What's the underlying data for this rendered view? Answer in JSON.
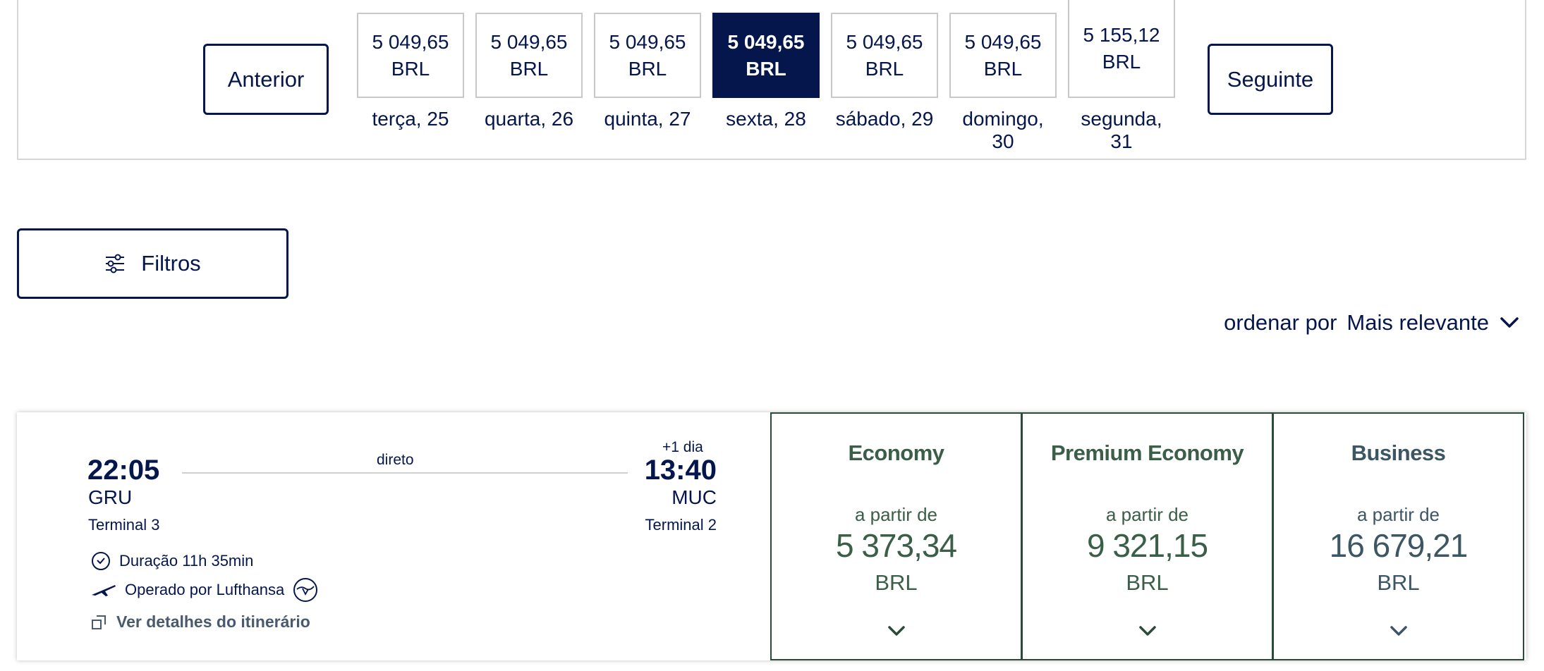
{
  "date_nav": {
    "prev_label": "Anterior",
    "next_label": "Seguinte",
    "dates": [
      {
        "price": "5 049,65",
        "currency": "BRL",
        "day": "terça, 25",
        "selected": false
      },
      {
        "price": "5 049,65",
        "currency": "BRL",
        "day": "quarta, 26",
        "selected": false
      },
      {
        "price": "5 049,65",
        "currency": "BRL",
        "day": "quinta, 27",
        "selected": false
      },
      {
        "price": "5 049,65",
        "currency": "BRL",
        "day": "sexta, 28",
        "selected": true
      },
      {
        "price": "5 049,65",
        "currency": "BRL",
        "day": "sábado, 29",
        "selected": false
      },
      {
        "price": "5 049,65",
        "currency": "BRL",
        "day": "domingo, 30",
        "selected": false
      },
      {
        "price": "5 155,12",
        "currency": "BRL",
        "day_line1": "segunda,",
        "day_line2": "31",
        "selected": false
      }
    ]
  },
  "filters": {
    "label": "Filtros",
    "icon": "sliders-icon"
  },
  "sort": {
    "prefix": "ordenar por",
    "value": "Mais relevante",
    "icon": "chevron-down-icon"
  },
  "flight": {
    "departure": {
      "time": "22:05",
      "airport": "GRU",
      "terminal": "Terminal 3"
    },
    "arrival": {
      "time": "13:40",
      "airport": "MUC",
      "terminal": "Terminal 2",
      "day_offset": "+1 dia"
    },
    "stops": "direto",
    "duration": "Duração 11h 35min",
    "operated_by": "Operado por Lufthansa",
    "details_link": "Ver detalhes do itinerário",
    "fares": [
      {
        "cabin": "Economy",
        "from": "a partir de",
        "price": "5 373,34",
        "currency": "BRL"
      },
      {
        "cabin": "Premium Economy",
        "from": "a partir de",
        "price": "9 321,15",
        "currency": "BRL"
      },
      {
        "cabin": "Business",
        "from": "a partir de",
        "price": "16 679,21",
        "currency": "BRL"
      }
    ]
  },
  "colors": {
    "navy": "#05164d",
    "green": "#3a5e48",
    "border_green": "#2a4b39",
    "grey_border": "#c8c8c8"
  }
}
